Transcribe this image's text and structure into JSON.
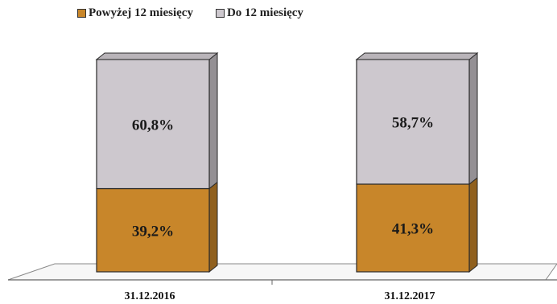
{
  "chart_data": {
    "type": "bar",
    "stacked": true,
    "percent": true,
    "categories": [
      "31.12.2016",
      "31.12.2017"
    ],
    "series": [
      {
        "name": "Powyżej 12 miesięcy",
        "values": [
          39.2,
          41.3
        ],
        "labels": [
          "39,2%",
          "41,3%"
        ],
        "color": "#c8862a"
      },
      {
        "name": "Do 12 miesięcy",
        "values": [
          60.8,
          58.7
        ],
        "labels": [
          "60,8%",
          "58,7%"
        ],
        "color": "#cdc8ce"
      }
    ],
    "ylim": [
      0,
      100
    ],
    "legend": "top",
    "grid": false,
    "style": "3d"
  }
}
